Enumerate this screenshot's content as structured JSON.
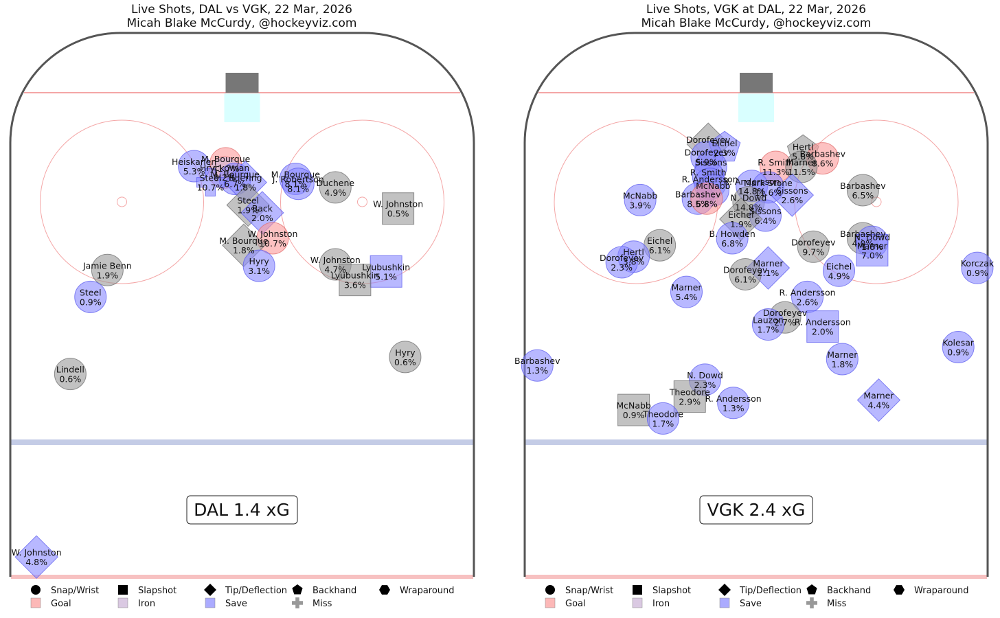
{
  "colors": {
    "goal": "#fb9a99",
    "iron": "#cab2d6",
    "save": "#8888ff",
    "miss": "#999999",
    "board": "#555555",
    "red_line": "#f4a6a6",
    "blue_line": "#c4cce6",
    "crease": "#d9ffff",
    "net": "#777777"
  },
  "legend": {
    "shot_types": [
      {
        "label": "Snap/Wrist",
        "icon": "circle-icon"
      },
      {
        "label": "Slapshot",
        "icon": "square-icon"
      },
      {
        "label": "Tip/Deflection",
        "icon": "diamond-icon"
      },
      {
        "label": "Backhand",
        "icon": "pentagon-icon"
      },
      {
        "label": "Wraparound",
        "icon": "hexagon-icon"
      }
    ],
    "outcomes": [
      {
        "label": "Goal",
        "key": "goal",
        "icon": "square-icon"
      },
      {
        "label": "Iron",
        "key": "iron",
        "icon": "square-icon"
      },
      {
        "label": "Save",
        "key": "save",
        "icon": "square-icon"
      },
      {
        "label": "Miss",
        "key": "miss",
        "icon": "plus-icon"
      }
    ]
  },
  "chart_data": [
    {
      "type": "scatter",
      "title": "Live Shots, DAL vs VGK, 22 Mar, 2026",
      "subtitle": "Micah Blake McCurdy, @hockeyviz.com",
      "badge": "DAL 1.4 xG",
      "x_range": [
        -42.5,
        42.5
      ],
      "y_range": [
        25,
        100
      ],
      "shots": [
        {
          "player": "M. Bourque",
          "xg": "41.7%",
          "x": -3,
          "y": 83.5,
          "shape": "circle",
          "outcome": "goal"
        },
        {
          "player": "Heiskanen",
          "xg": "5.3%",
          "x": -8.8,
          "y": 83.1,
          "shape": "circle",
          "outcome": "save"
        },
        {
          "player": "Hryckowian",
          "xg": "9.2%",
          "x": -3.2,
          "y": 82.2,
          "shape": "circle",
          "outcome": "iron"
        },
        {
          "player": "M. Bourque",
          "xg": "6.7%",
          "x": -1.3,
          "y": 81.3,
          "shape": "circle",
          "outcome": "save"
        },
        {
          "player": "Buering",
          "xg": "1.8%",
          "x": 0.6,
          "y": 80.8,
          "shape": "diamond",
          "outcome": "save"
        },
        {
          "player": "Steel",
          "xg": "10.7%",
          "x": -5.8,
          "y": 80.8,
          "shape": "plus",
          "outcome": "save"
        },
        {
          "player": "M. Bourque",
          "xg": "8.1%",
          "x": 9.8,
          "y": 81.3,
          "shape": "circle",
          "outcome": "save"
        },
        {
          "player": "J. Robertson",
          "xg": "8.1%",
          "x": 10.3,
          "y": 80.6,
          "shape": "circle",
          "outcome": "save"
        },
        {
          "player": "Duchene",
          "xg": "4.9%",
          "x": 17.1,
          "y": 80.1,
          "shape": "circle",
          "outcome": "miss"
        },
        {
          "player": "W. Johnston",
          "xg": "0.5%",
          "x": 28.6,
          "y": 77.1,
          "shape": "square",
          "outcome": "miss"
        },
        {
          "player": "Steel",
          "xg": "1.9%",
          "x": 1.1,
          "y": 77.6,
          "shape": "diamond",
          "outcome": "miss"
        },
        {
          "player": "Back",
          "xg": "2.0%",
          "x": 3.7,
          "y": 76.5,
          "shape": "diamond",
          "outcome": "save"
        },
        {
          "player": "W. Johnston",
          "xg": "10.7%",
          "x": 5.6,
          "y": 72.9,
          "shape": "circle",
          "outcome": "goal"
        },
        {
          "player": "M. Bourque",
          "xg": "1.8%",
          "x": 0.3,
          "y": 71.9,
          "shape": "diamond",
          "outcome": "miss"
        },
        {
          "player": "Hyry",
          "xg": "3.1%",
          "x": 3.1,
          "y": 69.0,
          "shape": "circle",
          "outcome": "save"
        },
        {
          "player": "W. Johnston",
          "xg": "4.7%",
          "x": 17.1,
          "y": 69.2,
          "shape": "circle",
          "outcome": "miss"
        },
        {
          "player": "Lyubushkin",
          "xg": "5.1%",
          "x": 26.4,
          "y": 68.2,
          "shape": "square",
          "outcome": "save"
        },
        {
          "player": "Lyubushkin",
          "xg": "3.6%",
          "x": 20.7,
          "y": 67.0,
          "shape": "square",
          "outcome": "miss"
        },
        {
          "player": "Jamie Benn",
          "xg": "1.9%",
          "x": -24.7,
          "y": 68.4,
          "shape": "circle",
          "outcome": "miss"
        },
        {
          "player": "Steel",
          "xg": "0.9%",
          "x": -27.8,
          "y": 64.6,
          "shape": "circle",
          "outcome": "save"
        },
        {
          "player": "Hyry",
          "xg": "0.6%",
          "x": 29.9,
          "y": 56.1,
          "shape": "circle",
          "outcome": "miss"
        },
        {
          "player": "Lindell",
          "xg": "0.6%",
          "x": -31.5,
          "y": 53.7,
          "shape": "circle",
          "outcome": "miss"
        },
        {
          "player": "W. Johnston",
          "xg": "4.8%",
          "x": -37.7,
          "y": 27.8,
          "shape": "diamond",
          "outcome": "save"
        }
      ]
    },
    {
      "type": "scatter",
      "title": "Live Shots, VGK at DAL, 22 Mar, 2026",
      "subtitle": "Micah Blake McCurdy, @hockeyviz.com",
      "badge": "VGK 2.4 xG",
      "x_range": [
        -42.5,
        42.5
      ],
      "y_range": [
        25,
        100
      ],
      "shots": [
        {
          "player": "Dorofeyev",
          "xg": "",
          "x": -8.8,
          "y": 86.2,
          "shape": "diamond",
          "outcome": "miss"
        },
        {
          "player": "Eichel",
          "xg": "2.3%",
          "x": -5.8,
          "y": 85.7,
          "shape": "pentagon",
          "outcome": "save"
        },
        {
          "player": "Dorofeyev",
          "xg": "5.9%",
          "x": -9.1,
          "y": 84.4,
          "shape": "circle",
          "outcome": "save"
        },
        {
          "player": "Sissons",
          "xg": "",
          "x": -8.3,
          "y": 83.0,
          "shape": "circle",
          "outcome": "save"
        },
        {
          "player": "R. Smith",
          "xg": "",
          "x": -8.8,
          "y": 81.6,
          "shape": "circle",
          "outcome": "save"
        },
        {
          "player": "R. Andersson",
          "xg": "",
          "x": -8.5,
          "y": 80.6,
          "shape": "circle",
          "outcome": "save"
        },
        {
          "player": "McNabb",
          "xg": "",
          "x": -7.9,
          "y": 79.7,
          "shape": "circle",
          "outcome": "save"
        },
        {
          "player": "Barbashev",
          "xg": "8.5%",
          "x": -10.7,
          "y": 78.5,
          "shape": "circle",
          "outcome": "save"
        },
        {
          "player": "",
          "xg": "6.8%",
          "x": -9.1,
          "y": 78.5,
          "shape": "circle",
          "outcome": "goal"
        },
        {
          "player": "Hertl",
          "xg": "5.8%",
          "x": 8.6,
          "y": 85.2,
          "shape": "pentagon",
          "outcome": "miss"
        },
        {
          "player": "Barbashev",
          "xg": "8.6%",
          "x": 12.2,
          "y": 84.2,
          "shape": "circle",
          "outcome": "goal"
        },
        {
          "player": "R. Smith",
          "xg": "11.3%",
          "x": 3.6,
          "y": 83.0,
          "shape": "circle",
          "outcome": "goal"
        },
        {
          "player": "Marner",
          "xg": "11.5%",
          "x": 8.3,
          "y": 83.0,
          "shape": "circle",
          "outcome": "miss"
        },
        {
          "player": "R. Andersson",
          "xg": "14.8%",
          "x": -0.8,
          "y": 80.3,
          "shape": "circle",
          "outcome": "save"
        },
        {
          "player": "Mark Stone",
          "xg": "11.6%",
          "x": 2.2,
          "y": 80.1,
          "shape": "circle",
          "outcome": "save"
        },
        {
          "player": "Sissons",
          "xg": "2.6%",
          "x": 6.6,
          "y": 79.0,
          "shape": "diamond",
          "outcome": "save"
        },
        {
          "player": "N. Dowd",
          "xg": "14.8%",
          "x": -1.4,
          "y": 78.0,
          "shape": "circle",
          "outcome": "miss"
        },
        {
          "player": "Sissons",
          "xg": "6.4%",
          "x": 1.7,
          "y": 76.1,
          "shape": "circle",
          "outcome": "save"
        },
        {
          "player": "Eichel",
          "xg": "1.9%",
          "x": -2.8,
          "y": 75.6,
          "shape": "diamond",
          "outcome": "miss"
        },
        {
          "player": "B. Howden",
          "xg": "6.8%",
          "x": -4.4,
          "y": 72.9,
          "shape": "circle",
          "outcome": "save"
        },
        {
          "player": "Barbashev",
          "xg": "6.5%",
          "x": 19.6,
          "y": 79.7,
          "shape": "circle",
          "outcome": "miss"
        },
        {
          "player": "McNabb",
          "xg": "3.9%",
          "x": -21.3,
          "y": 78.3,
          "shape": "circle",
          "outcome": "save"
        },
        {
          "player": "Eichel",
          "xg": "6.1%",
          "x": -17.7,
          "y": 71.9,
          "shape": "circle",
          "outcome": "miss"
        },
        {
          "player": "Hertl",
          "xg": "3.8%",
          "x": -22.5,
          "y": 70.3,
          "shape": "circle",
          "outcome": "save"
        },
        {
          "player": "Dorofeyev",
          "xg": "2.3%",
          "x": -24.7,
          "y": 69.5,
          "shape": "circle",
          "outcome": "save"
        },
        {
          "player": "Dorofeyev",
          "xg": "9.7%",
          "x": 10.5,
          "y": 71.7,
          "shape": "circle",
          "outcome": "miss"
        },
        {
          "player": "Barbashev",
          "xg": "4.0%",
          "x": 19.6,
          "y": 72.9,
          "shape": "circle",
          "outcome": "miss"
        },
        {
          "player": "N. Dowd",
          "xg": "1.6%",
          "x": 21.3,
          "y": 72.4,
          "shape": "circle",
          "outcome": "save"
        },
        {
          "player": "Marner",
          "xg": "7.0%",
          "x": 21.3,
          "y": 71.2,
          "shape": "square",
          "outcome": "save"
        },
        {
          "player": "Marner",
          "xg": "2.1%",
          "x": 2.2,
          "y": 68.7,
          "shape": "diamond",
          "outcome": "save"
        },
        {
          "player": "Dorofeyev",
          "xg": "6.1%",
          "x": -2.0,
          "y": 67.8,
          "shape": "circle",
          "outcome": "miss"
        },
        {
          "player": "Eichel",
          "xg": "4.9%",
          "x": 15.2,
          "y": 68.3,
          "shape": "circle",
          "outcome": "save"
        },
        {
          "player": "Korczak",
          "xg": "0.9%",
          "x": 40.6,
          "y": 68.7,
          "shape": "circle",
          "outcome": "save"
        },
        {
          "player": "Marner",
          "xg": "5.4%",
          "x": -12.8,
          "y": 65.3,
          "shape": "circle",
          "outcome": "save"
        },
        {
          "player": "R. Andersson",
          "xg": "2.6%",
          "x": 9.4,
          "y": 64.6,
          "shape": "circle",
          "outcome": "save"
        },
        {
          "player": "Dorofeyev",
          "xg": "2.7%",
          "x": 5.3,
          "y": 61.7,
          "shape": "circle",
          "outcome": "miss"
        },
        {
          "player": "Lauzon",
          "xg": "1.7%",
          "x": 2.2,
          "y": 60.7,
          "shape": "circle",
          "outcome": "save"
        },
        {
          "player": "R. Andersson",
          "xg": "2.0%",
          "x": 12.2,
          "y": 60.4,
          "shape": "square",
          "outcome": "save"
        },
        {
          "player": "Kolesar",
          "xg": "0.9%",
          "x": 37.1,
          "y": 57.5,
          "shape": "circle",
          "outcome": "save"
        },
        {
          "player": "Marner",
          "xg": "1.8%",
          "x": 15.8,
          "y": 55.8,
          "shape": "circle",
          "outcome": "save"
        },
        {
          "player": "Barbashev",
          "xg": "1.3%",
          "x": -40.2,
          "y": 54.9,
          "shape": "circle",
          "outcome": "save"
        },
        {
          "player": "N. Dowd",
          "xg": "2.3%",
          "x": -9.4,
          "y": 52.9,
          "shape": "circle",
          "outcome": "save"
        },
        {
          "player": "Theodore",
          "xg": "2.9%",
          "x": -12.2,
          "y": 50.5,
          "shape": "square",
          "outcome": "miss"
        },
        {
          "player": "R. Andersson",
          "xg": "1.3%",
          "x": -4.2,
          "y": 49.6,
          "shape": "circle",
          "outcome": "save"
        },
        {
          "player": "Marner",
          "xg": "4.4%",
          "x": 22.5,
          "y": 50.0,
          "shape": "diamond",
          "outcome": "save"
        },
        {
          "player": "McNabb",
          "xg": "0.9%",
          "x": -22.5,
          "y": 48.6,
          "shape": "square",
          "outcome": "miss"
        },
        {
          "player": "Theodore",
          "xg": "1.7%",
          "x": -17.1,
          "y": 47.4,
          "shape": "circle",
          "outcome": "save"
        }
      ]
    }
  ]
}
